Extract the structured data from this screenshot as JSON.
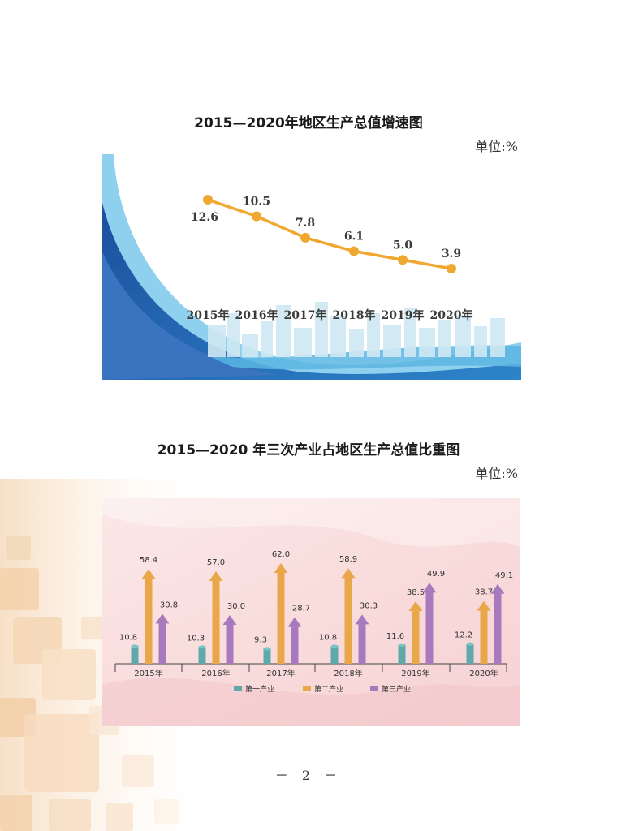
{
  "chart_data": [
    {
      "type": "line",
      "title": "2015—2020年地区生产总值增速图",
      "unit": "单位:%",
      "categories": [
        "2015年",
        "2016年",
        "2017年",
        "2018年",
        "2019年",
        "2020年"
      ],
      "values": [
        12.6,
        10.5,
        7.8,
        6.1,
        5.0,
        3.9
      ],
      "value_labels": [
        "12.6",
        "10.5",
        "7.8",
        "6.1",
        "5.0",
        "3.9"
      ],
      "line_color": "#f0a830",
      "grid": false
    },
    {
      "type": "bar",
      "title": "2015—2020 年三次产业占地区生产总值比重图",
      "unit": "单位:%",
      "categories": [
        "2015年",
        "2016年",
        "2017年",
        "2018年",
        "2019年",
        "2020年"
      ],
      "series": [
        {
          "name": "第一产业",
          "color": "#5fa9ab",
          "values": [
            10.8,
            10.3,
            9.3,
            10.8,
            11.6,
            12.2
          ],
          "labels": [
            "10.8",
            "10.3",
            "9.3",
            "10.8",
            "11.6",
            "12.2"
          ]
        },
        {
          "name": "第二产业",
          "color": "#e9a74a",
          "values": [
            58.4,
            57.0,
            62.0,
            58.9,
            38.5,
            38.7
          ],
          "labels": [
            "58.4",
            "57.0",
            "62.0",
            "58.9",
            "38.5",
            "38.7"
          ]
        },
        {
          "name": "第三产业",
          "color": "#a979bd",
          "values": [
            30.8,
            30.0,
            28.7,
            30.3,
            49.9,
            49.1
          ],
          "labels": [
            "30.8",
            "30.0",
            "28.7",
            "30.3",
            "49.9",
            "49.1"
          ]
        }
      ],
      "legend_position": "bottom",
      "grid": false
    }
  ],
  "page_number": "－ 2 －"
}
